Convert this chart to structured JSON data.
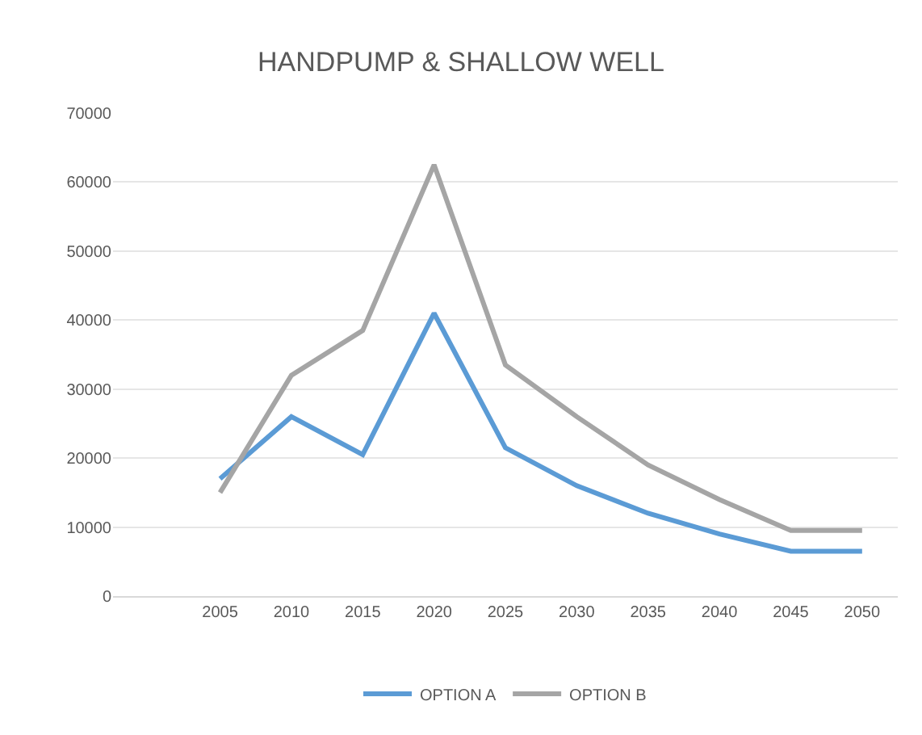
{
  "chart_data": {
    "type": "line",
    "title": "HANDPUMP & SHALLOW WELL",
    "categories": [
      null,
      "2005",
      "2010",
      "2015",
      "2020",
      "2025",
      "2030",
      "2035",
      "2040",
      "2045",
      "2050"
    ],
    "series": [
      {
        "name": "OPTION A",
        "color": "#5b9bd5",
        "values": [
          null,
          17000,
          26000,
          20500,
          41000,
          21500,
          16000,
          12000,
          9000,
          6500,
          6500
        ]
      },
      {
        "name": "OPTION B",
        "color": "#a5a5a5",
        "values": [
          null,
          15000,
          32000,
          38500,
          62500,
          33500,
          26000,
          19000,
          14000,
          9500,
          9500
        ]
      }
    ],
    "ylim": [
      0,
      70000
    ],
    "yticks": [
      0,
      10000,
      20000,
      30000,
      40000,
      50000,
      60000,
      70000
    ],
    "grid": "y",
    "legend": "bottom",
    "marker": "none",
    "line_style": "solid"
  }
}
